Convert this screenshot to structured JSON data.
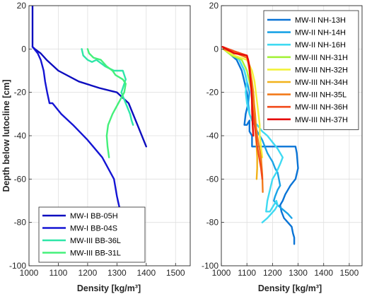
{
  "chart_data": [
    {
      "type": "line",
      "xlabel": "Density [kg/m³]",
      "ylabel": "Depth below lutocline [cm]",
      "xlim": [
        1000,
        1550
      ],
      "ylim": [
        -100,
        20
      ],
      "xticks": [
        1000,
        1100,
        1200,
        1300,
        1400,
        1500
      ],
      "yticks": [
        20,
        0,
        -20,
        -40,
        -60,
        -80,
        -100
      ],
      "grid": true,
      "legend_position": "bottom-left",
      "series": [
        {
          "name": "MW-I BB-05H",
          "color": "#0d0dbf",
          "x": [
            1012,
            1012,
            1012,
            1020,
            1040,
            1060,
            1100,
            1170,
            1240,
            1300,
            1340,
            1370,
            1400
          ],
          "y": [
            20,
            10,
            1,
            0,
            -2,
            -5,
            -10,
            -15,
            -18,
            -20,
            -25,
            -35,
            -45
          ]
        },
        {
          "name": "MW-I BB-04S",
          "color": "#1414d4",
          "x": [
            1012,
            1030,
            1040,
            1050,
            1055,
            1062,
            1070,
            1080,
            1110,
            1150,
            1200,
            1250,
            1290,
            1300,
            1310
          ],
          "y": [
            1,
            -2,
            -5,
            -10,
            -15,
            -20,
            -25,
            -25,
            -30,
            -35,
            -42,
            -50,
            -60,
            -68,
            -74
          ]
        },
        {
          "name": "MW-III BB-36L",
          "color": "#2ee6a8",
          "x": [
            1180,
            1185,
            1200,
            1215,
            1230,
            1260,
            1290,
            1320,
            1330,
            1320,
            1315,
            1330,
            1345,
            1350,
            1355
          ],
          "y": [
            0,
            -3,
            -5,
            -6,
            -5,
            -8,
            -10,
            -10,
            -14,
            -18,
            -20,
            -25,
            -30,
            -33,
            -35
          ]
        },
        {
          "name": "MW-III BB-31L",
          "color": "#44f07a",
          "x": [
            1200,
            1205,
            1220,
            1245,
            1265,
            1285,
            1295,
            1320,
            1330,
            1325,
            1305,
            1285,
            1270,
            1265,
            1268,
            1273
          ],
          "y": [
            0,
            -2,
            -4,
            -5,
            -8,
            -10,
            -12,
            -14,
            -16,
            -20,
            -25,
            -30,
            -35,
            -40,
            -45,
            -50
          ]
        }
      ]
    },
    {
      "type": "line",
      "xlabel": "Density [kg/m³]",
      "ylabel": "",
      "xlim": [
        1000,
        1550
      ],
      "ylim": [
        -100,
        20
      ],
      "xticks": [
        1000,
        1100,
        1200,
        1300,
        1400,
        1500
      ],
      "yticks": [
        20,
        0,
        -20,
        -40,
        -60,
        -80,
        -100
      ],
      "grid": true,
      "legend_position": "top-right",
      "series": [
        {
          "name": "MW-II NH-13H",
          "color": "#0a74d6",
          "x": [
            1008,
            1030,
            1060,
            1080,
            1090,
            1100,
            1105,
            1095,
            1090,
            1100,
            1110,
            1110,
            1120,
            1120,
            1130,
            1200,
            1250,
            1290,
            1295,
            1300,
            1290,
            1270,
            1260,
            1250,
            1240,
            1230,
            1235,
            1245,
            1260,
            1275,
            1280,
            1285,
            1285
          ],
          "y": [
            0,
            -2,
            -5,
            -10,
            -15,
            -20,
            -25,
            -30,
            -35,
            -35,
            -33,
            -38,
            -40,
            -45,
            -45,
            -45,
            -45,
            -45,
            -48,
            -55,
            -60,
            -63,
            -65,
            -67,
            -70,
            -72,
            -75,
            -78,
            -80,
            -82,
            -85,
            -87,
            -90
          ]
        },
        {
          "name": "MW-II NH-14H",
          "color": "#1aa3e6",
          "x": [
            1008,
            1040,
            1070,
            1090,
            1100,
            1110,
            1105,
            1110,
            1120,
            1130,
            1140,
            1150,
            1160,
            1170,
            1180,
            1190,
            1200,
            1210,
            1220,
            1225,
            1230,
            1220,
            1210,
            1205,
            1220,
            1240,
            1260,
            1275
          ],
          "y": [
            0,
            -2,
            -5,
            -10,
            -15,
            -20,
            -25,
            -30,
            -33,
            -35,
            -38,
            -40,
            -42,
            -45,
            -48,
            -50,
            -52,
            -55,
            -57,
            -60,
            -63,
            -65,
            -68,
            -70,
            -72,
            -74,
            -76,
            -78
          ]
        },
        {
          "name": "MW-II NH-16H",
          "color": "#3fdaf2",
          "x": [
            1008,
            1040,
            1070,
            1090,
            1100,
            1095,
            1100,
            1110,
            1120,
            1140,
            1160,
            1180,
            1200,
            1220,
            1240,
            1230,
            1215,
            1200,
            1190,
            1180,
            1175,
            1190,
            1205,
            1215,
            1220,
            1210,
            1195,
            1180,
            1170,
            1160
          ],
          "y": [
            0,
            -2,
            -5,
            -10,
            -15,
            -20,
            -25,
            -30,
            -33,
            -35,
            -38,
            -40,
            -43,
            -46,
            -50,
            -53,
            -57,
            -60,
            -65,
            -70,
            -75,
            -75,
            -72,
            -70,
            -72,
            -74,
            -76,
            -78,
            -79,
            -80
          ]
        },
        {
          "name": "MW-III NH-31H",
          "color": "#a4f23a",
          "x": [
            1008,
            1040,
            1080,
            1100,
            1110,
            1120,
            1125,
            1130,
            1135,
            1140
          ],
          "y": [
            0,
            -3,
            -5,
            -10,
            -15,
            -20,
            -25,
            -30,
            -35,
            -40
          ]
        },
        {
          "name": "MW-III NH-32H",
          "color": "#f2f23a",
          "x": [
            1008,
            1050,
            1100,
            1120,
            1130,
            1135,
            1140,
            1145,
            1150,
            1150,
            1155,
            1160
          ],
          "y": [
            0,
            -3,
            -5,
            -10,
            -15,
            -20,
            -25,
            -30,
            -35,
            -40,
            -45,
            -50
          ]
        },
        {
          "name": "MW-III NH-34H",
          "color": "#f2b21a",
          "x": [
            1008,
            1060,
            1100,
            1110,
            1120,
            1125,
            1130,
            1135,
            1138,
            1140,
            1140,
            1138
          ],
          "y": [
            0,
            -2,
            -4,
            -8,
            -15,
            -20,
            -30,
            -40,
            -45,
            -50,
            -55,
            -60
          ]
        },
        {
          "name": "MW-III NH-35L",
          "color": "#f27a1a",
          "x": [
            1008,
            1060,
            1100,
            1110,
            1115,
            1120,
            1125,
            1128,
            1132,
            1135,
            1140,
            1148,
            1155,
            1160,
            1162
          ],
          "y": [
            0,
            -2,
            -4,
            -8,
            -12,
            -16,
            -20,
            -25,
            -30,
            -35,
            -40,
            -45,
            -50,
            -58,
            -66
          ]
        },
        {
          "name": "MW-III NH-36H",
          "color": "#f24a1a",
          "x": [
            1005,
            1050,
            1100,
            1105,
            1110,
            1115,
            1118,
            1120,
            1125,
            1130,
            1135,
            1140,
            1148,
            1155,
            1160
          ],
          "y": [
            1,
            -1,
            -3,
            -6,
            -10,
            -15,
            -20,
            -25,
            -30,
            -35,
            -40,
            -45,
            -50,
            -55,
            -60
          ]
        },
        {
          "name": "MW-III NH-37H",
          "color": "#e60a0a",
          "x": [
            1005,
            1050,
            1100,
            1105,
            1110,
            1112,
            1115,
            1118,
            1120,
            1120,
            1122,
            1125
          ],
          "y": [
            1,
            -2,
            -3,
            -5,
            -8,
            -12,
            -16,
            -20,
            -24,
            -28,
            -34,
            -40
          ]
        }
      ]
    }
  ]
}
